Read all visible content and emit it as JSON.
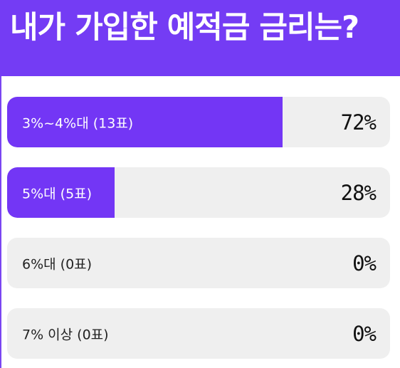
{
  "header": {
    "title": "내가 가입한 예적금 금리는?"
  },
  "colors": {
    "accent": "#743cf4",
    "bar_fill": "#7336f5",
    "bar_track": "#efefef"
  },
  "poll": {
    "options": [
      {
        "label": "3%~4%대 (13표)",
        "percent_text": "72%",
        "percent": 72
      },
      {
        "label": "5%대 (5표)",
        "percent_text": "28%",
        "percent": 28
      },
      {
        "label": "6%대 (0표)",
        "percent_text": "0%",
        "percent": 0
      },
      {
        "label": "7% 이상 (0표)",
        "percent_text": "0%",
        "percent": 0
      }
    ]
  }
}
